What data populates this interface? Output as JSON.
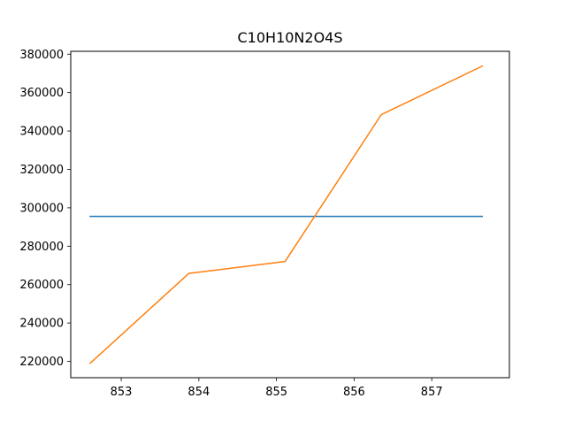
{
  "chart_data": {
    "type": "line",
    "title": "C10H10N2O4S",
    "xlabel": "",
    "ylabel": "",
    "xlim": [
      852.35,
      858.0
    ],
    "ylim": [
      211500,
      381500
    ],
    "xticks": [
      853,
      854,
      855,
      856,
      857
    ],
    "yticks": [
      220000,
      240000,
      260000,
      280000,
      300000,
      320000,
      340000,
      360000,
      380000
    ],
    "grid": false,
    "series": [
      {
        "color": "#1f77b4",
        "x": [
          852.6,
          857.65
        ],
        "y": [
          295500,
          295500
        ]
      },
      {
        "color": "#ff7f0e",
        "x": [
          852.6,
          853.87,
          855.11,
          856.35,
          857.65
        ],
        "y": [
          219000,
          265800,
          272000,
          348500,
          373800
        ]
      }
    ]
  }
}
